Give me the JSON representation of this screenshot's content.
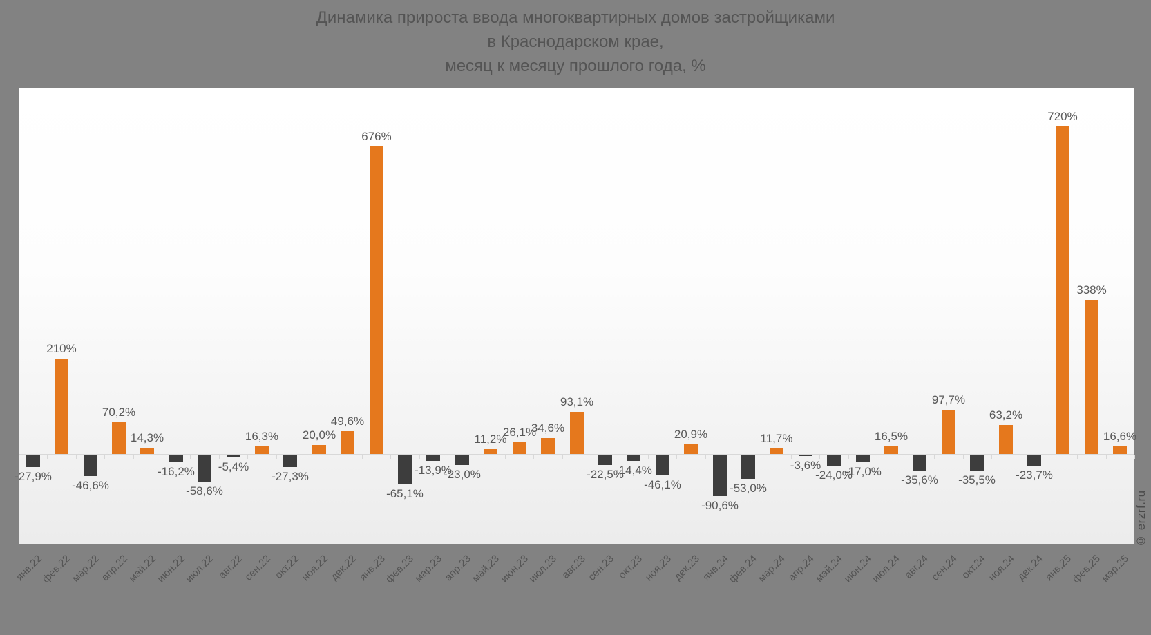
{
  "title": {
    "line1": "Динамика прироста ввода многоквартирных домов застройщиками",
    "line2": "в Краснодарском крае,",
    "line3": "месяц к месяцу прошлого года, %"
  },
  "watermark": "© erzrf.ru",
  "colors": {
    "background": "#828282",
    "positive_bar": "#e5781d",
    "negative_bar": "#3d3d3d",
    "value_label_text": "#595959",
    "axis_line": "#d8d8d8",
    "title_text": "#545454",
    "x_axis_label_text": "#545454"
  },
  "chart_data": {
    "type": "bar",
    "title": "Динамика прироста ввода многоквартирных домов застройщиками в Краснодарском крае, месяц к месяцу прошлого года, %",
    "xlabel": "",
    "ylabel": "",
    "ylim": [
      -110,
      770
    ],
    "grid": false,
    "legend": false,
    "categories": [
      "янв.22",
      "фев.22",
      "мар.22",
      "апр.22",
      "май.22",
      "июн.22",
      "июл.22",
      "авг.22",
      "сен.22",
      "окт.22",
      "ноя.22",
      "дек.22",
      "янв.23",
      "фев.23",
      "мар.23",
      "апр.23",
      "май.23",
      "июн.23",
      "июл.23",
      "авг.23",
      "сен.23",
      "окт.23",
      "ноя.23",
      "дек.23",
      "янв.24",
      "фев.24",
      "мар.24",
      "апр.24",
      "май.24",
      "июн.24",
      "июл.24",
      "авг.24",
      "сен.24",
      "окт.24",
      "ноя.24",
      "дек.24",
      "янв.25",
      "фев.25",
      "мар.25"
    ],
    "values": [
      -27.9,
      210,
      -46.6,
      70.2,
      14.3,
      -16.2,
      -58.6,
      -5.4,
      16.3,
      -27.3,
      20.0,
      49.6,
      676,
      -65.1,
      -13.9,
      -23.0,
      11.2,
      26.1,
      34.6,
      93.1,
      -22.5,
      -14.4,
      -46.1,
      20.9,
      -90.6,
      -53.0,
      11.7,
      -3.6,
      -24.0,
      -17.0,
      16.5,
      -35.6,
      97.7,
      -35.5,
      63.2,
      -23.7,
      720,
      338,
      16.6
    ],
    "value_labels": [
      "-27,9%",
      "210%",
      "-46,6%",
      "70,2%",
      "14,3%",
      "-16,2%",
      "-58,6%",
      "-5,4%",
      "16,3%",
      "-27,3%",
      "20,0%",
      "49,6%",
      "676%",
      "-65,1%",
      "-13,9%",
      "-23,0%",
      "11,2%",
      "26,1%",
      "34,6%",
      "93,1%",
      "-22,5%",
      "-14,4%",
      "-46,1%",
      "20,9%",
      "-90,6%",
      "-53,0%",
      "11,7%",
      "-3,6%",
      "-24,0%",
      "-17,0%",
      "16,5%",
      "-35,6%",
      "97,7%",
      "-35,5%",
      "63,2%",
      "-23,7%",
      "720%",
      "338%",
      "16,6%"
    ]
  }
}
